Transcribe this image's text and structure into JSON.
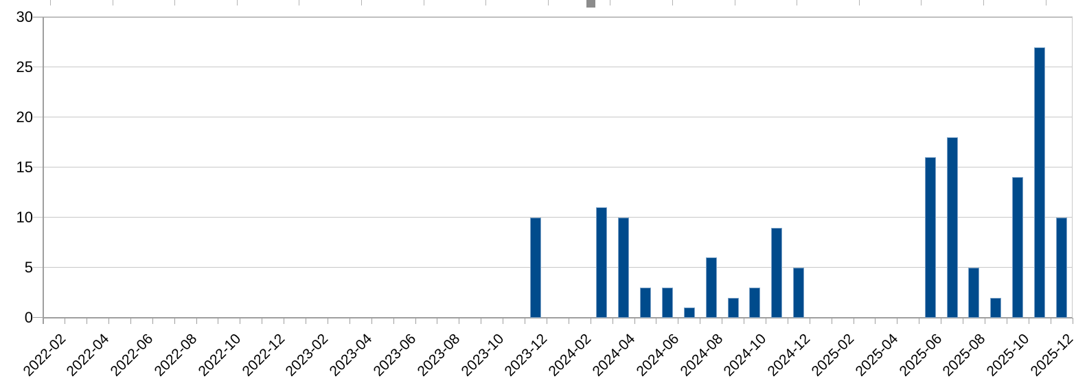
{
  "window": {
    "background": "#ffffff",
    "selection_handle": {
      "color": "#8c8c8c"
    },
    "column_separator_color": "#b3b3b3"
  },
  "chart_data": {
    "type": "bar",
    "title": "",
    "legend": "none",
    "grid": "horizontal",
    "bar_color": "#004b8c",
    "bar_border_color": "#7fa5c9",
    "axis_color": "#9e9e9e",
    "grid_color": "#c8c8c8",
    "label_color": "#000000",
    "ylim": [
      0,
      30
    ],
    "yticks": [
      0,
      5,
      10,
      15,
      20,
      25,
      30
    ],
    "x_label_rotation_deg": 45,
    "x_tick_label_every": 2,
    "x": [
      "2022-02",
      "2022-03",
      "2022-04",
      "2022-05",
      "2022-06",
      "2022-07",
      "2022-08",
      "2022-09",
      "2022-10",
      "2022-11",
      "2022-12",
      "2023-01",
      "2023-02",
      "2023-03",
      "2023-04",
      "2023-05",
      "2023-06",
      "2023-07",
      "2023-08",
      "2023-09",
      "2023-10",
      "2023-11",
      "2023-12",
      "2024-01",
      "2024-02",
      "2024-03",
      "2024-04",
      "2024-05",
      "2024-06",
      "2024-07",
      "2024-08",
      "2024-09",
      "2024-10",
      "2024-11",
      "2024-12",
      "2025-01",
      "2025-02",
      "2025-03",
      "2025-04",
      "2025-05",
      "2025-06",
      "2025-07",
      "2025-08",
      "2025-09",
      "2025-10",
      "2025-11",
      "2025-12"
    ],
    "values": [
      0,
      0,
      0,
      0,
      0,
      0,
      0,
      0,
      0,
      0,
      0,
      0,
      0,
      0,
      0,
      0,
      0,
      0,
      0,
      0,
      0,
      0,
      10,
      0,
      0,
      11,
      10,
      3,
      3,
      1,
      6,
      2,
      3,
      9,
      5,
      0,
      0,
      0,
      0,
      0,
      16,
      18,
      5,
      2,
      14,
      27,
      10
    ],
    "x_labels_shown": [
      "2022-02",
      "2022-04",
      "2022-06",
      "2022-08",
      "2022-10",
      "2022-12",
      "2023-02",
      "2023-04",
      "2023-06",
      "2023-08",
      "2023-10",
      "2023-12",
      "2024-02",
      "2024-04",
      "2024-06",
      "2024-08",
      "2024-10",
      "2024-12",
      "2025-02",
      "2025-04",
      "2025-06",
      "2025-08",
      "2025-10",
      "2025-12"
    ]
  }
}
